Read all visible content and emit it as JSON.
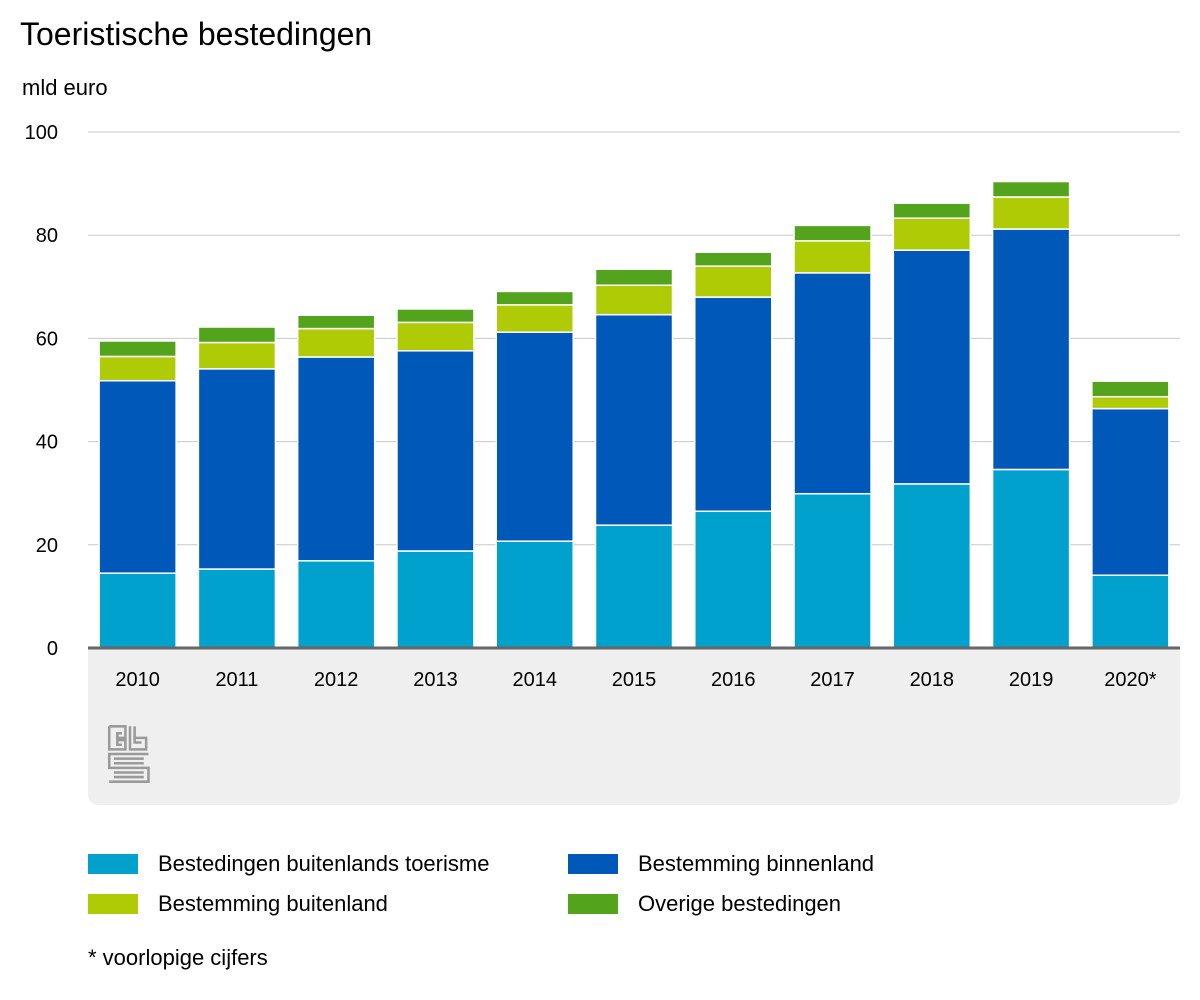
{
  "header": {
    "title": "Toeristische bestedingen",
    "unit": "mld euro"
  },
  "footnote": "* voorlopige cijfers",
  "logo": {
    "icon": "cbs-logo-icon",
    "text": "cbs"
  },
  "chart_data": {
    "type": "bar",
    "stacked": true,
    "title": "Toeristische bestedingen",
    "ylabel": "mld euro",
    "xlabel": "",
    "ylim": [
      0,
      100
    ],
    "yticks": [
      0,
      20,
      40,
      60,
      80,
      100
    ],
    "grid": true,
    "legend_position": "bottom",
    "categories": [
      "2010",
      "2011",
      "2012",
      "2013",
      "2014",
      "2015",
      "2016",
      "2017",
      "2018",
      "2019",
      "2020*"
    ],
    "series": [
      {
        "name": "Bestedingen buitenlands toerisme",
        "color": "#00a1cd",
        "values": [
          14.5,
          15.3,
          16.9,
          18.8,
          20.7,
          23.8,
          26.5,
          29.9,
          31.8,
          34.6,
          14.1
        ]
      },
      {
        "name": "Bestemming binnenland",
        "color": "#0058b8",
        "values": [
          37.3,
          38.8,
          39.5,
          38.8,
          40.5,
          40.8,
          41.5,
          42.8,
          45.3,
          46.6,
          32.3
        ]
      },
      {
        "name": "Bestemming buitenland",
        "color": "#afcb05",
        "values": [
          4.7,
          5.1,
          5.5,
          5.5,
          5.3,
          5.7,
          6.0,
          6.2,
          6.2,
          6.2,
          2.3
        ]
      },
      {
        "name": "Overige bestedingen",
        "color": "#53a31d",
        "values": [
          3.0,
          3.0,
          2.6,
          2.6,
          2.6,
          3.1,
          2.7,
          3.0,
          2.9,
          3.0,
          3.0
        ]
      }
    ]
  },
  "legend": [
    {
      "label": "Bestedingen buitenlands toerisme",
      "color": "#00a1cd"
    },
    {
      "label": "Bestemming binnenland",
      "color": "#0058b8"
    },
    {
      "label": "Bestemming buitenland",
      "color": "#afcb05"
    },
    {
      "label": "Overige bestedingen",
      "color": "#53a31d"
    }
  ]
}
